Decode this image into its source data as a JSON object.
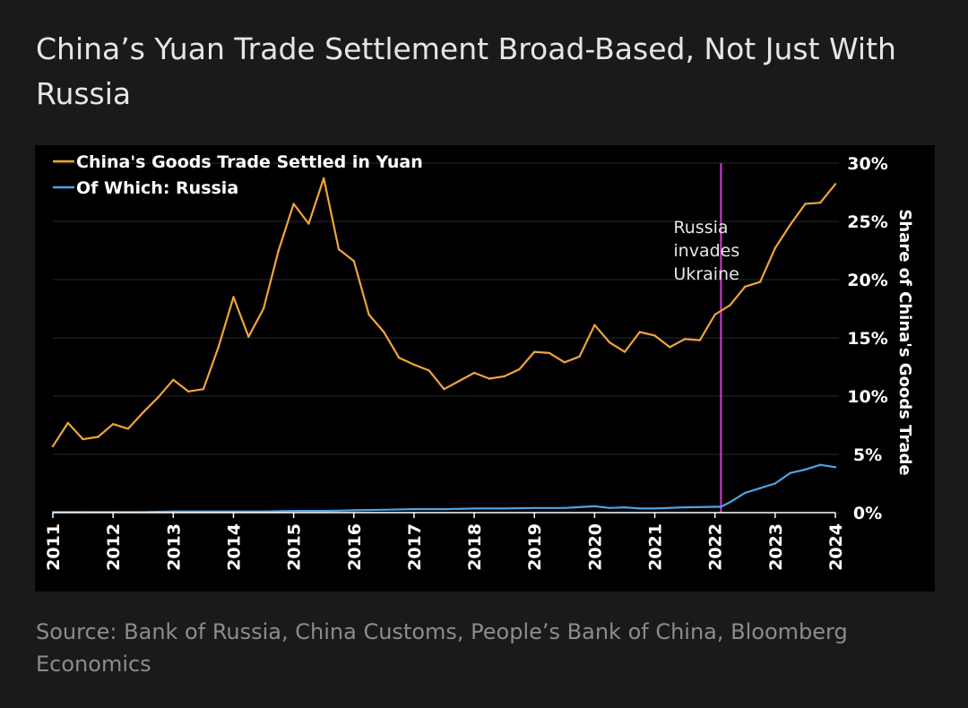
{
  "title": "China’s Yuan Trade Settlement Broad-Based, Not Just With Russia",
  "source": "Source: Bank of Russia, China Customs, People’s Bank of China, Bloomberg Economics",
  "colors": {
    "yuan": "#f0a43c",
    "russia": "#4ea3e6",
    "event": "#d63bd6",
    "axis_text": "#ffffff",
    "grid": "#2a2a2a"
  },
  "chart_data": {
    "type": "line",
    "title": "China’s Yuan Trade Settlement Broad-Based, Not Just With Russia",
    "xlabel": "",
    "ylabel": "Share of China's Goods Trade",
    "ylim": [
      0,
      30
    ],
    "xlim": [
      2011,
      2024
    ],
    "x_ticks": [
      "2011",
      "2012",
      "2013",
      "2014",
      "2015",
      "2016",
      "2017",
      "2018",
      "2019",
      "2020",
      "2021",
      "2022",
      "2023",
      "2024"
    ],
    "y_ticks": [
      "0%",
      "5%",
      "10%",
      "15%",
      "20%",
      "25%",
      "30%"
    ],
    "legend": "top-left",
    "annotation": {
      "x": 2022.1,
      "lines": [
        "Russia",
        "invades",
        "Ukraine"
      ]
    },
    "series": [
      {
        "name": "China's Goods Trade Settled in Yuan",
        "color_key": "yuan",
        "x": [
          2011.0,
          2011.25,
          2011.5,
          2011.75,
          2012.0,
          2012.25,
          2012.5,
          2012.75,
          2013.0,
          2013.25,
          2013.5,
          2013.75,
          2014.0,
          2014.25,
          2014.5,
          2014.75,
          2015.0,
          2015.25,
          2015.5,
          2015.75,
          2016.0,
          2016.25,
          2016.5,
          2016.75,
          2017.0,
          2017.25,
          2017.5,
          2017.75,
          2018.0,
          2018.25,
          2018.5,
          2018.75,
          2019.0,
          2019.25,
          2019.5,
          2019.75,
          2020.0,
          2020.25,
          2020.5,
          2020.75,
          2021.0,
          2021.25,
          2021.5,
          2021.75,
          2022.0,
          2022.25,
          2022.5,
          2022.75,
          2023.0,
          2023.25,
          2023.5,
          2023.75,
          2024.0
        ],
        "values": [
          5.7,
          7.7,
          6.3,
          6.5,
          7.6,
          7.2,
          8.6,
          9.9,
          11.4,
          10.4,
          10.6,
          14.2,
          18.5,
          15.1,
          17.5,
          22.5,
          26.5,
          24.8,
          28.7,
          22.6,
          21.6,
          17.0,
          15.5,
          13.3,
          12.7,
          12.2,
          10.6,
          11.3,
          12.0,
          11.5,
          11.7,
          12.3,
          13.8,
          13.7,
          12.9,
          13.4,
          16.1,
          14.6,
          13.8,
          15.5,
          15.2,
          14.2,
          14.9,
          14.8,
          17.0,
          17.8,
          19.4,
          19.8,
          22.7,
          24.7,
          26.5,
          26.6,
          28.2
        ]
      },
      {
        "name": "Of Which: Russia",
        "color_key": "russia",
        "x": [
          2011.0,
          2011.5,
          2012.0,
          2012.5,
          2013.0,
          2013.5,
          2014.0,
          2014.5,
          2015.0,
          2015.5,
          2016.0,
          2016.5,
          2017.0,
          2017.5,
          2018.0,
          2018.5,
          2019.0,
          2019.5,
          2020.0,
          2020.25,
          2020.5,
          2020.75,
          2021.0,
          2021.5,
          2022.0,
          2022.1,
          2022.25,
          2022.5,
          2022.75,
          2023.0,
          2023.25,
          2023.5,
          2023.75,
          2024.0
        ],
        "values": [
          0.05,
          0.05,
          0.05,
          0.05,
          0.1,
          0.1,
          0.1,
          0.1,
          0.15,
          0.15,
          0.2,
          0.25,
          0.3,
          0.3,
          0.35,
          0.35,
          0.4,
          0.4,
          0.55,
          0.4,
          0.45,
          0.35,
          0.35,
          0.45,
          0.5,
          0.5,
          0.9,
          1.7,
          2.1,
          2.5,
          3.4,
          3.7,
          4.1,
          3.9
        ]
      }
    ]
  }
}
